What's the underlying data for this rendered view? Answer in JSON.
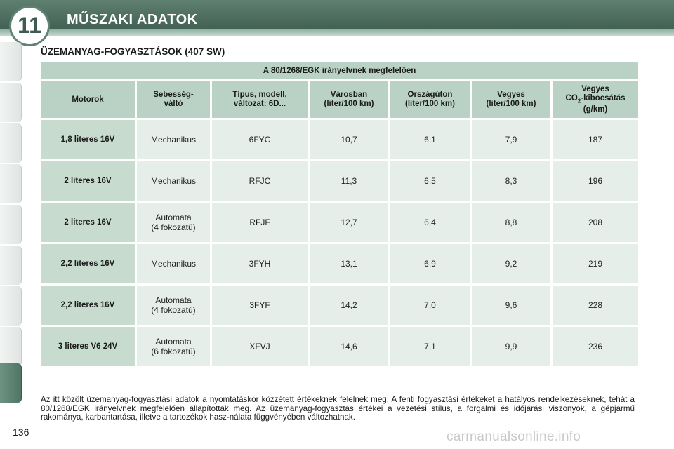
{
  "header": {
    "chapter_number": "11",
    "title": "MŰSZAKI ADATOK"
  },
  "section_title": "ÜZEMANYAG-FOGYASZTÁSOK (407 SW)",
  "table": {
    "caption": "A 80/1268/EGK irányelvnek megfelelően",
    "columns": [
      "Motorok",
      "Sebesség-\nváltó",
      "Típus, modell,\nváltozat: 6D...",
      "Városban\n(liter/100 km)",
      "Országúton\n(liter/100 km)",
      "Vegyes\n(liter/100 km)",
      "Vegyes CO2-kibocsátás (g/km)"
    ],
    "co2_header": {
      "line1": "Vegyes",
      "co": "CO",
      "sub": "2",
      "line2_rest": "-kibocsátás",
      "line3": "(g/km)"
    },
    "rows": [
      {
        "engine": "1,8 literes 16V",
        "gearbox": "Mechanikus",
        "type": "6FYC",
        "city": "10,7",
        "road": "6,1",
        "mixed": "7,9",
        "co2": "187"
      },
      {
        "engine": "2 literes 16V",
        "gearbox": "Mechanikus",
        "type": "RFJC",
        "city": "11,3",
        "road": "6,5",
        "mixed": "8,3",
        "co2": "196"
      },
      {
        "engine": "2 literes 16V",
        "gearbox": "Automata\n(4 fokozatú)",
        "type": "RFJF",
        "city": "12,7",
        "road": "6,4",
        "mixed": "8,8",
        "co2": "208"
      },
      {
        "engine": "2,2 literes 16V",
        "gearbox": "Mechanikus",
        "type": "3FYH",
        "city": "13,1",
        "road": "6,9",
        "mixed": "9,2",
        "co2": "219"
      },
      {
        "engine": "2,2 literes 16V",
        "gearbox": "Automata\n(4 fokozatú)",
        "type": "3FYF",
        "city": "14,2",
        "road": "7,0",
        "mixed": "9,6",
        "co2": "228"
      },
      {
        "engine": "3 literes V6 24V",
        "gearbox": "Automata\n(6 fokozatú)",
        "type": "XFVJ",
        "city": "14,6",
        "road": "7,1",
        "mixed": "9,9",
        "co2": "236"
      }
    ]
  },
  "note": "Az itt közölt üzemanyag-fogyasztási adatok a nyomtatáskor közzétett értékeknek felelnek meg. A fenti fogyasztási értékeket a hatályos rendelkezéseknek, tehát a 80/1268/EGK irányelvnek megfelelően állapították meg. Az üzemanyag-fogyasztás értékei a vezetési stílus, a forgalmi és időjárási viszonyok, a gépjármű rakománya, karbantartása, illetve a tartozékok hasz-nálata függvényében változhatnak.",
  "page_number": "136",
  "watermark": "carmanualsonline.info",
  "colors": {
    "header_green": "#3c5a4d",
    "table_header": "#b9d2c5",
    "table_cell": "#e5eee9"
  }
}
